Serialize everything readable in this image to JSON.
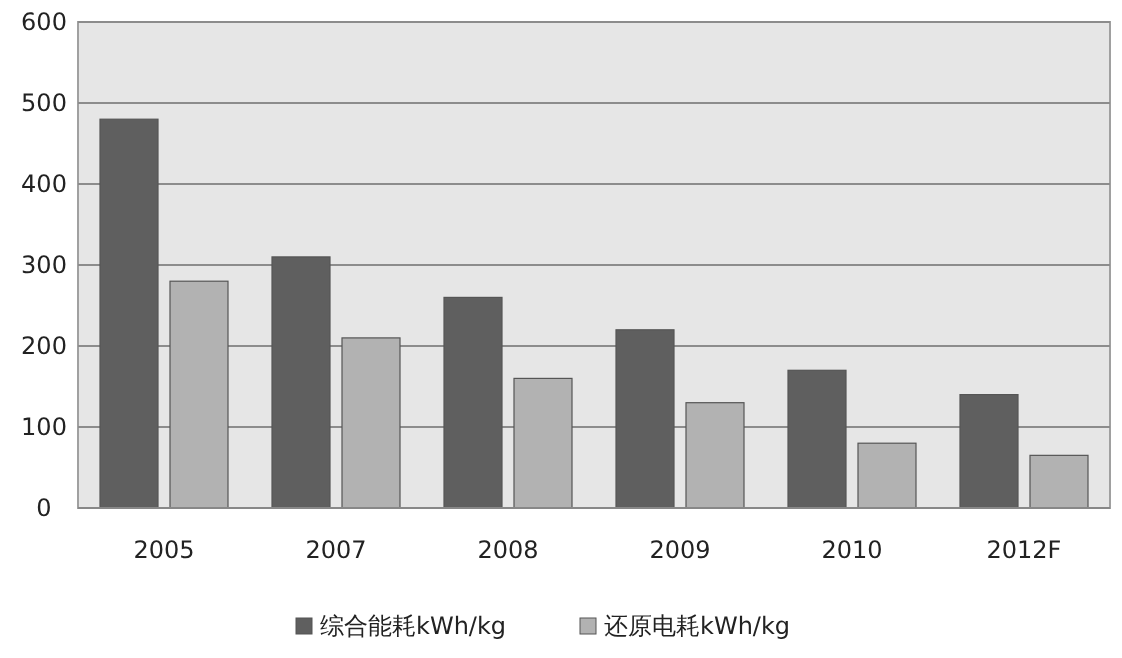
{
  "chart_data": {
    "type": "bar",
    "categories": [
      "2005",
      "2007",
      "2008",
      "2009",
      "2010",
      "2012F"
    ],
    "series": [
      {
        "name": "综合能耗kWh/kg",
        "color": "#5f5f5f",
        "values": [
          480,
          310,
          260,
          220,
          170,
          140
        ]
      },
      {
        "name": "还原电耗kWh/kg",
        "color": "#b2b2b2",
        "values": [
          280,
          210,
          160,
          130,
          80,
          65
        ]
      }
    ],
    "ylim": [
      0,
      600
    ],
    "yticks": [
      0,
      100,
      200,
      300,
      400,
      500,
      600
    ],
    "grid": "y",
    "legend": "bottom"
  }
}
